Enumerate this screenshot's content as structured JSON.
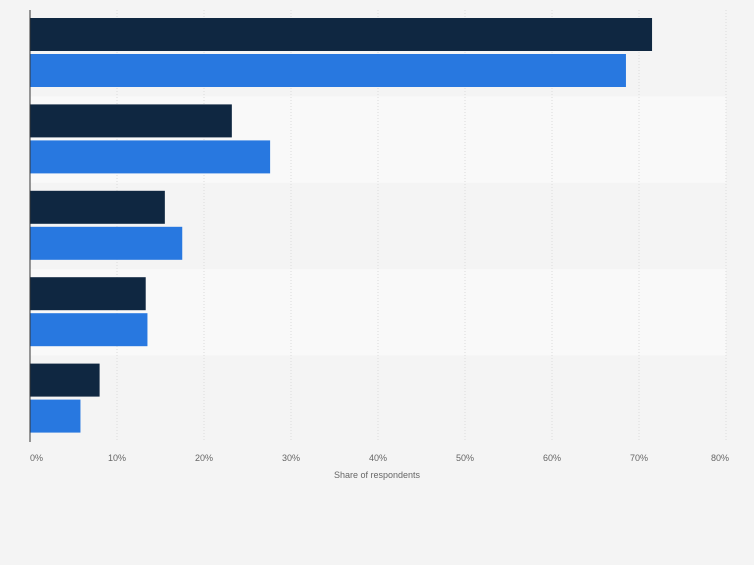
{
  "chart_data": {
    "type": "bar",
    "orientation": "horizontal",
    "categories": [
      "",
      "",
      "",
      "",
      ""
    ],
    "series": [
      {
        "values": [
          71.5,
          23.2,
          15.5,
          13.3,
          8.0
        ],
        "color": "#0f2741"
      },
      {
        "values": [
          68.5,
          27.6,
          17.5,
          13.5,
          5.8
        ],
        "color": "#2878e0"
      }
    ],
    "xlim": [
      0,
      80
    ],
    "xticks": [
      0,
      10,
      20,
      30,
      40,
      50,
      60,
      70,
      80
    ],
    "tick_suffix": "%",
    "xlabel": "Share of respondents",
    "ylabel": "",
    "title": "",
    "grid": true,
    "legend": "none"
  },
  "colors": {
    "background": "#f4f4f4",
    "band_light": "#f9f9f9",
    "band_dark": "#f4f4f4",
    "grid": "#dcdcdc",
    "axis": "#333333",
    "text": "#666666"
  }
}
